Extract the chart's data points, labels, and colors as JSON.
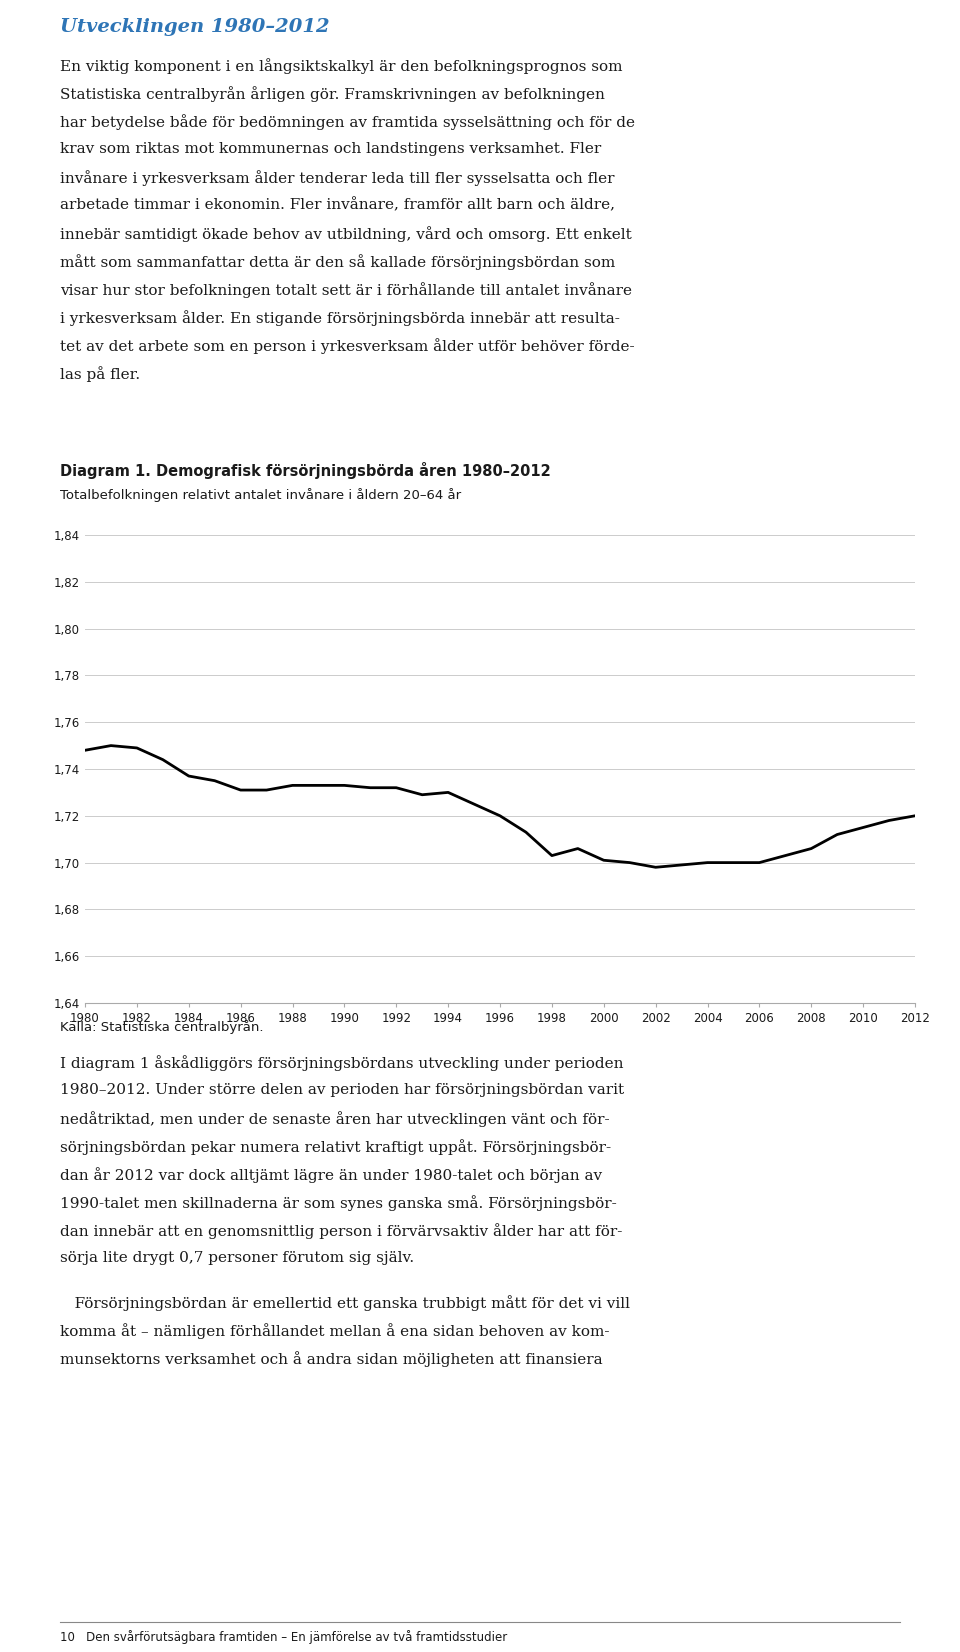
{
  "page_title": "Utvecklingen 1980–2012",
  "page_title_color": "#2e75b6",
  "body_text_1_lines": [
    "En viktig komponent i en långsiktskalkyl är den befolkningsprognos som",
    "Statistiska centralbyrån årligen gör. Framskrivningen av befolkningen",
    "har betydelse både för bedömningen av framtida sysselsättning och för de",
    "krav som riktas mot kommunernas och landstingens verksamhet. Fler",
    "invånare i yrkesverksam ålder tenderar leda till fler sysselsatta och fler",
    "arbetade timmar i ekonomin. Fler invånare, framför allt barn och äldre,",
    "innebär samtidigt ökade behov av utbildning, vård och omsorg. Ett enkelt",
    "mått som sammanfattar detta är den så kallade försörjningsbördan som",
    "visar hur stor befolkningen totalt sett är i förhållande till antalet invånare",
    "i yrkesverksam ålder. En stigande försörjningsbörda innebär att resulta-",
    "tet av det arbete som en person i yrkesverksam ålder utför behöver förde-",
    "las på fler."
  ],
  "diagram_title_bold": "Diagram 1. Demografisk försörjningsbörda åren 1980–2012",
  "diagram_subtitle": "Totalbefolkningen relativt antalet invånare i åldern 20–64 år",
  "source_text": "Källa: Statistiska centralbyrån.",
  "body_text_2_lines": [
    "I diagram 1 åskådliggörs försörjningsbördans utveckling under perioden",
    "1980–2012. Under större delen av perioden har försörjningsbördan varit",
    "nedåtriktad, men under de senaste åren har utvecklingen vänt och för-",
    "sörjningsbördan pekar numera relativt kraftigt uppåt. Försörjningsbör-",
    "dan år 2012 var dock alltjämt lägre än under 1980-talet och början av",
    "1990-talet men skillnaderna är som synes ganska små. Försörjningsbör-",
    "dan innebär att en genomsnittlig person i förvärvsaktiv ålder har att för-",
    "sörja lite drygt 0,7 personer förutom sig själv."
  ],
  "body_text_3_lines": [
    "   Försörjningsbördan är emellertid ett ganska trubbigt mått för det vi vill",
    "komma åt – nämligen förhållandet mellan å ena sidan behoven av kom-",
    "munsektorns verksamhet och å andra sidan möjligheten att finansiera"
  ],
  "footer_text": "10   Den svårförutsägbara framtiden – En jämförelse av två framtidsstudier",
  "years": [
    1980,
    1981,
    1982,
    1983,
    1984,
    1985,
    1986,
    1987,
    1988,
    1989,
    1990,
    1991,
    1992,
    1993,
    1994,
    1995,
    1996,
    1997,
    1998,
    1999,
    2000,
    2001,
    2002,
    2003,
    2004,
    2005,
    2006,
    2007,
    2008,
    2009,
    2010,
    2011,
    2012
  ],
  "values": [
    1.748,
    1.75,
    1.749,
    1.744,
    1.737,
    1.735,
    1.731,
    1.731,
    1.733,
    1.733,
    1.733,
    1.732,
    1.732,
    1.729,
    1.73,
    1.725,
    1.72,
    1.713,
    1.703,
    1.706,
    1.701,
    1.7,
    1.698,
    1.699,
    1.7,
    1.7,
    1.7,
    1.703,
    1.706,
    1.712,
    1.715,
    1.718,
    1.72
  ],
  "ylim": [
    1.64,
    1.84
  ],
  "yticks": [
    1.64,
    1.66,
    1.68,
    1.7,
    1.72,
    1.74,
    1.76,
    1.78,
    1.8,
    1.82,
    1.84
  ],
  "xticks": [
    1980,
    1982,
    1984,
    1986,
    1988,
    1990,
    1992,
    1994,
    1996,
    1998,
    2000,
    2002,
    2004,
    2006,
    2008,
    2010,
    2012
  ],
  "line_color": "#000000",
  "line_width": 2.0,
  "grid_color": "#cccccc",
  "background_color": "#ffffff",
  "text_color": "#1a1a1a"
}
